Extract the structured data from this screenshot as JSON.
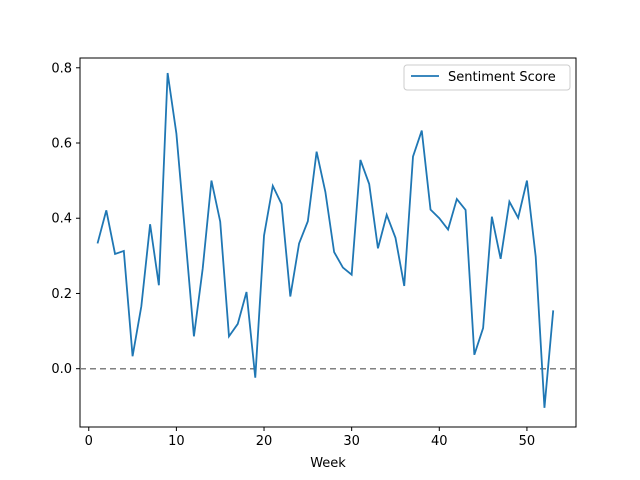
{
  "chart_data": {
    "type": "line",
    "title": "",
    "xlabel": "Week",
    "ylabel": "",
    "xlim": [
      -1,
      55.6
    ],
    "ylim": [
      -0.155,
      0.826
    ],
    "xticks": [
      0,
      10,
      20,
      30,
      40,
      50
    ],
    "yticks": [
      0.0,
      0.2,
      0.4,
      0.6,
      0.8
    ],
    "grid": false,
    "legend_position": "top-right",
    "reference_line": {
      "y": 0,
      "style": "dashed",
      "color": "#808080"
    },
    "series": [
      {
        "name": "Sentiment Score",
        "color": "#1f77b4",
        "x": [
          1,
          2,
          3,
          4,
          5,
          6,
          7,
          8,
          9,
          10,
          11,
          12,
          13,
          14,
          15,
          16,
          17,
          18,
          19,
          20,
          21,
          22,
          23,
          24,
          25,
          26,
          27,
          28,
          29,
          30,
          31,
          32,
          33,
          34,
          35,
          36,
          37,
          38,
          39,
          40,
          41,
          42,
          43,
          44,
          45,
          46,
          47,
          48,
          49,
          50,
          51,
          52,
          53
        ],
        "values": [
          0.333,
          0.421,
          0.305,
          0.313,
          0.033,
          0.166,
          0.384,
          0.222,
          0.786,
          0.625,
          0.357,
          0.086,
          0.266,
          0.5,
          0.391,
          0.086,
          0.119,
          0.204,
          -0.024,
          0.354,
          0.486,
          0.438,
          0.192,
          0.333,
          0.392,
          0.577,
          0.47,
          0.31,
          0.269,
          0.25,
          0.555,
          0.491,
          0.32,
          0.409,
          0.348,
          0.22,
          0.564,
          0.633,
          0.423,
          0.4,
          0.37,
          0.451,
          0.422,
          0.037,
          0.108,
          0.404,
          0.292,
          0.444,
          0.401,
          0.5,
          0.298,
          -0.104,
          0.155
        ]
      }
    ]
  }
}
